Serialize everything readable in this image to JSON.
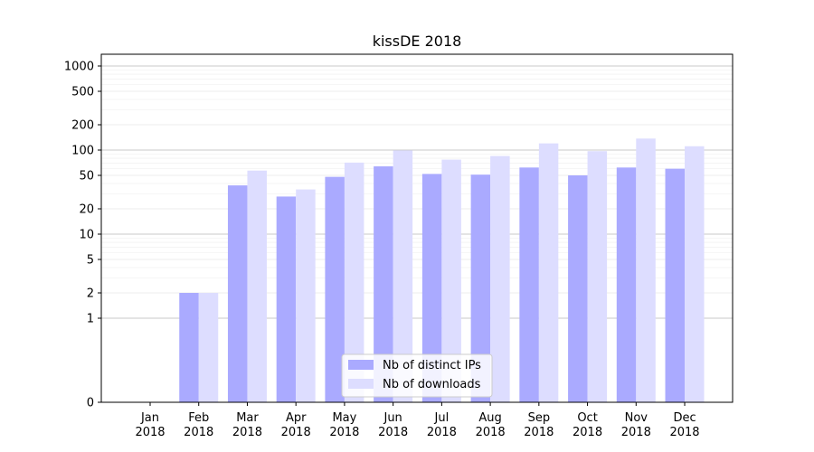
{
  "chart_data": {
    "type": "bar",
    "title": "kissDE 2018",
    "xlabel": "",
    "ylabel": "",
    "yscale": "symlog",
    "ylim": [
      0,
      1100
    ],
    "yticks": [
      0,
      1,
      2,
      5,
      10,
      20,
      50,
      100,
      200,
      500,
      1000
    ],
    "categories": [
      {
        "month": "Jan",
        "year": "2018"
      },
      {
        "month": "Feb",
        "year": "2018"
      },
      {
        "month": "Mar",
        "year": "2018"
      },
      {
        "month": "Apr",
        "year": "2018"
      },
      {
        "month": "May",
        "year": "2018"
      },
      {
        "month": "Jun",
        "year": "2018"
      },
      {
        "month": "Jul",
        "year": "2018"
      },
      {
        "month": "Aug",
        "year": "2018"
      },
      {
        "month": "Sep",
        "year": "2018"
      },
      {
        "month": "Oct",
        "year": "2018"
      },
      {
        "month": "Nov",
        "year": "2018"
      },
      {
        "month": "Dec",
        "year": "2018"
      }
    ],
    "series": [
      {
        "name": "Nb of distinct IPs",
        "color": "#aaaaff",
        "values": [
          0,
          2,
          38,
          28,
          48,
          64,
          52,
          51,
          62,
          50,
          62,
          60
        ]
      },
      {
        "name": "Nb of downloads",
        "color": "#ddddff",
        "values": [
          0,
          2,
          57,
          34,
          71,
          99,
          77,
          85,
          120,
          97,
          137,
          111
        ]
      }
    ],
    "grid": true,
    "legend_position": "bottom-center"
  }
}
